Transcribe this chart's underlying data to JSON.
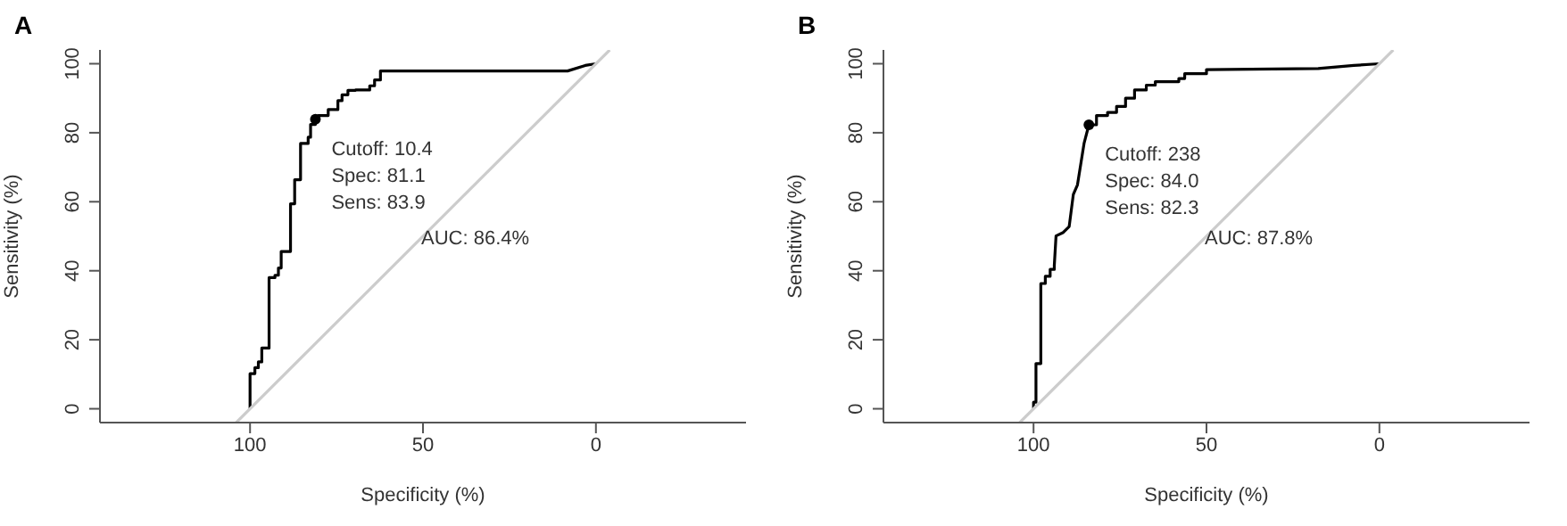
{
  "chart_data": [
    {
      "type": "line",
      "title": "A",
      "xlabel": "Specificity (%)",
      "ylabel": "Sensitivity (%)",
      "xlim": [
        143.4,
        -43.4
      ],
      "ylim": [
        -4,
        104
      ],
      "xticks": [
        100,
        50,
        0
      ],
      "yticks": [
        0,
        20,
        40,
        60,
        80,
        100
      ],
      "grid": false,
      "marker": "none",
      "line_style": "solid",
      "series": [
        {
          "color": "#000000",
          "x": [
            100,
            100,
            98.6,
            98.6,
            97.6,
            97.6,
            96.6,
            96.6,
            94.5,
            94.5,
            92.8,
            92.8,
            91.8,
            91.8,
            91,
            91,
            88.3,
            88.3,
            87.1,
            87.1,
            85.4,
            85.4,
            83.2,
            83.2,
            82.5,
            82.5,
            81.1,
            81.1,
            80.3,
            80.3,
            77.4,
            77.4,
            74.6,
            74.6,
            73.4,
            73.4,
            71.7,
            71.7,
            69.5,
            69.5,
            65.4,
            65.4,
            64,
            64,
            62.3,
            62.3,
            8.2,
            3.1,
            0
          ],
          "values": [
            0,
            10.2,
            10.2,
            11.9,
            11.9,
            13.6,
            13.6,
            17.6,
            17.6,
            38,
            38,
            38.7,
            38.7,
            40.8,
            40.8,
            45.6,
            45.6,
            59.4,
            59.4,
            66.4,
            66.4,
            76.9,
            76.9,
            78.7,
            78.7,
            82.4,
            82.4,
            83.9,
            83.9,
            85,
            85,
            86.7,
            86.7,
            89.3,
            89.3,
            91,
            91,
            92.3,
            92.3,
            92.4,
            92.4,
            93.6,
            93.6,
            95.3,
            95.3,
            97.9,
            97.9,
            99.5,
            100
          ]
        },
        {
          "type": "line",
          "color": "#cccccc",
          "x": [
            104,
            -4
          ],
          "values": [
            -4,
            104
          ]
        },
        {
          "type": "scatter",
          "color": "#000000",
          "marker": "circle",
          "x": [
            81.1
          ],
          "values": [
            83.9
          ]
        }
      ],
      "annotations": [
        {
          "text": "Cutoff: 10.4\nSpec: 81.1\nSens: 83.9",
          "x": 81.1,
          "y": 83.9
        },
        "AUC: 86.4%"
      ]
    },
    {
      "type": "line",
      "title": "B",
      "xlabel": "Specificity (%)",
      "ylabel": "Sensitivity (%)",
      "xlim": [
        143.4,
        -43.4
      ],
      "ylim": [
        -4,
        104
      ],
      "xticks": [
        100,
        50,
        0
      ],
      "yticks": [
        0,
        20,
        40,
        60,
        80,
        100
      ],
      "grid": false,
      "marker": "none",
      "line_style": "solid",
      "series": [
        {
          "color": "#000000",
          "x": [
            100,
            100,
            99.3,
            99.3,
            97.9,
            97.9,
            96.6,
            96.6,
            95.2,
            95.2,
            94,
            94,
            93.5,
            91.4,
            91.4,
            89.7,
            89.7,
            88.5,
            88.5,
            87.3,
            87.3,
            85.4,
            85.4,
            84,
            84,
            81.8,
            81.8,
            78.6,
            78.6,
            76,
            76,
            73.4,
            73.4,
            70.8,
            70.8,
            67.4,
            67.4,
            64.8,
            64.8,
            58,
            58,
            56.3,
            56.3,
            50,
            50,
            17.7,
            7.4,
            0
          ],
          "values": [
            0,
            1.9,
            1.9,
            13.1,
            13.1,
            36.3,
            36.3,
            38.4,
            38.4,
            40.4,
            40.4,
            41.5,
            50.1,
            51.1,
            51.1,
            52.8,
            52.8,
            62.1,
            62.1,
            64.9,
            64.9,
            76.9,
            76.9,
            82.3,
            82.3,
            82.3,
            85,
            85,
            85.9,
            85.9,
            87.6,
            87.6,
            90,
            90,
            92.4,
            92.4,
            93.8,
            93.8,
            94.8,
            94.8,
            95.7,
            95.7,
            97.1,
            97.1,
            98.3,
            98.6,
            99.5,
            100
          ]
        },
        {
          "type": "line",
          "color": "#cccccc",
          "x": [
            104,
            -4
          ],
          "values": [
            -4,
            104
          ]
        },
        {
          "type": "scatter",
          "color": "#000000",
          "marker": "circle",
          "x": [
            84.0
          ],
          "values": [
            82.3
          ]
        }
      ],
      "annotations": [
        {
          "text": "Cutoff: 238\nSpec: 84.0\nSens: 82.3",
          "x": 84.0,
          "y": 82.3
        },
        "AUC: 87.8%"
      ]
    }
  ]
}
